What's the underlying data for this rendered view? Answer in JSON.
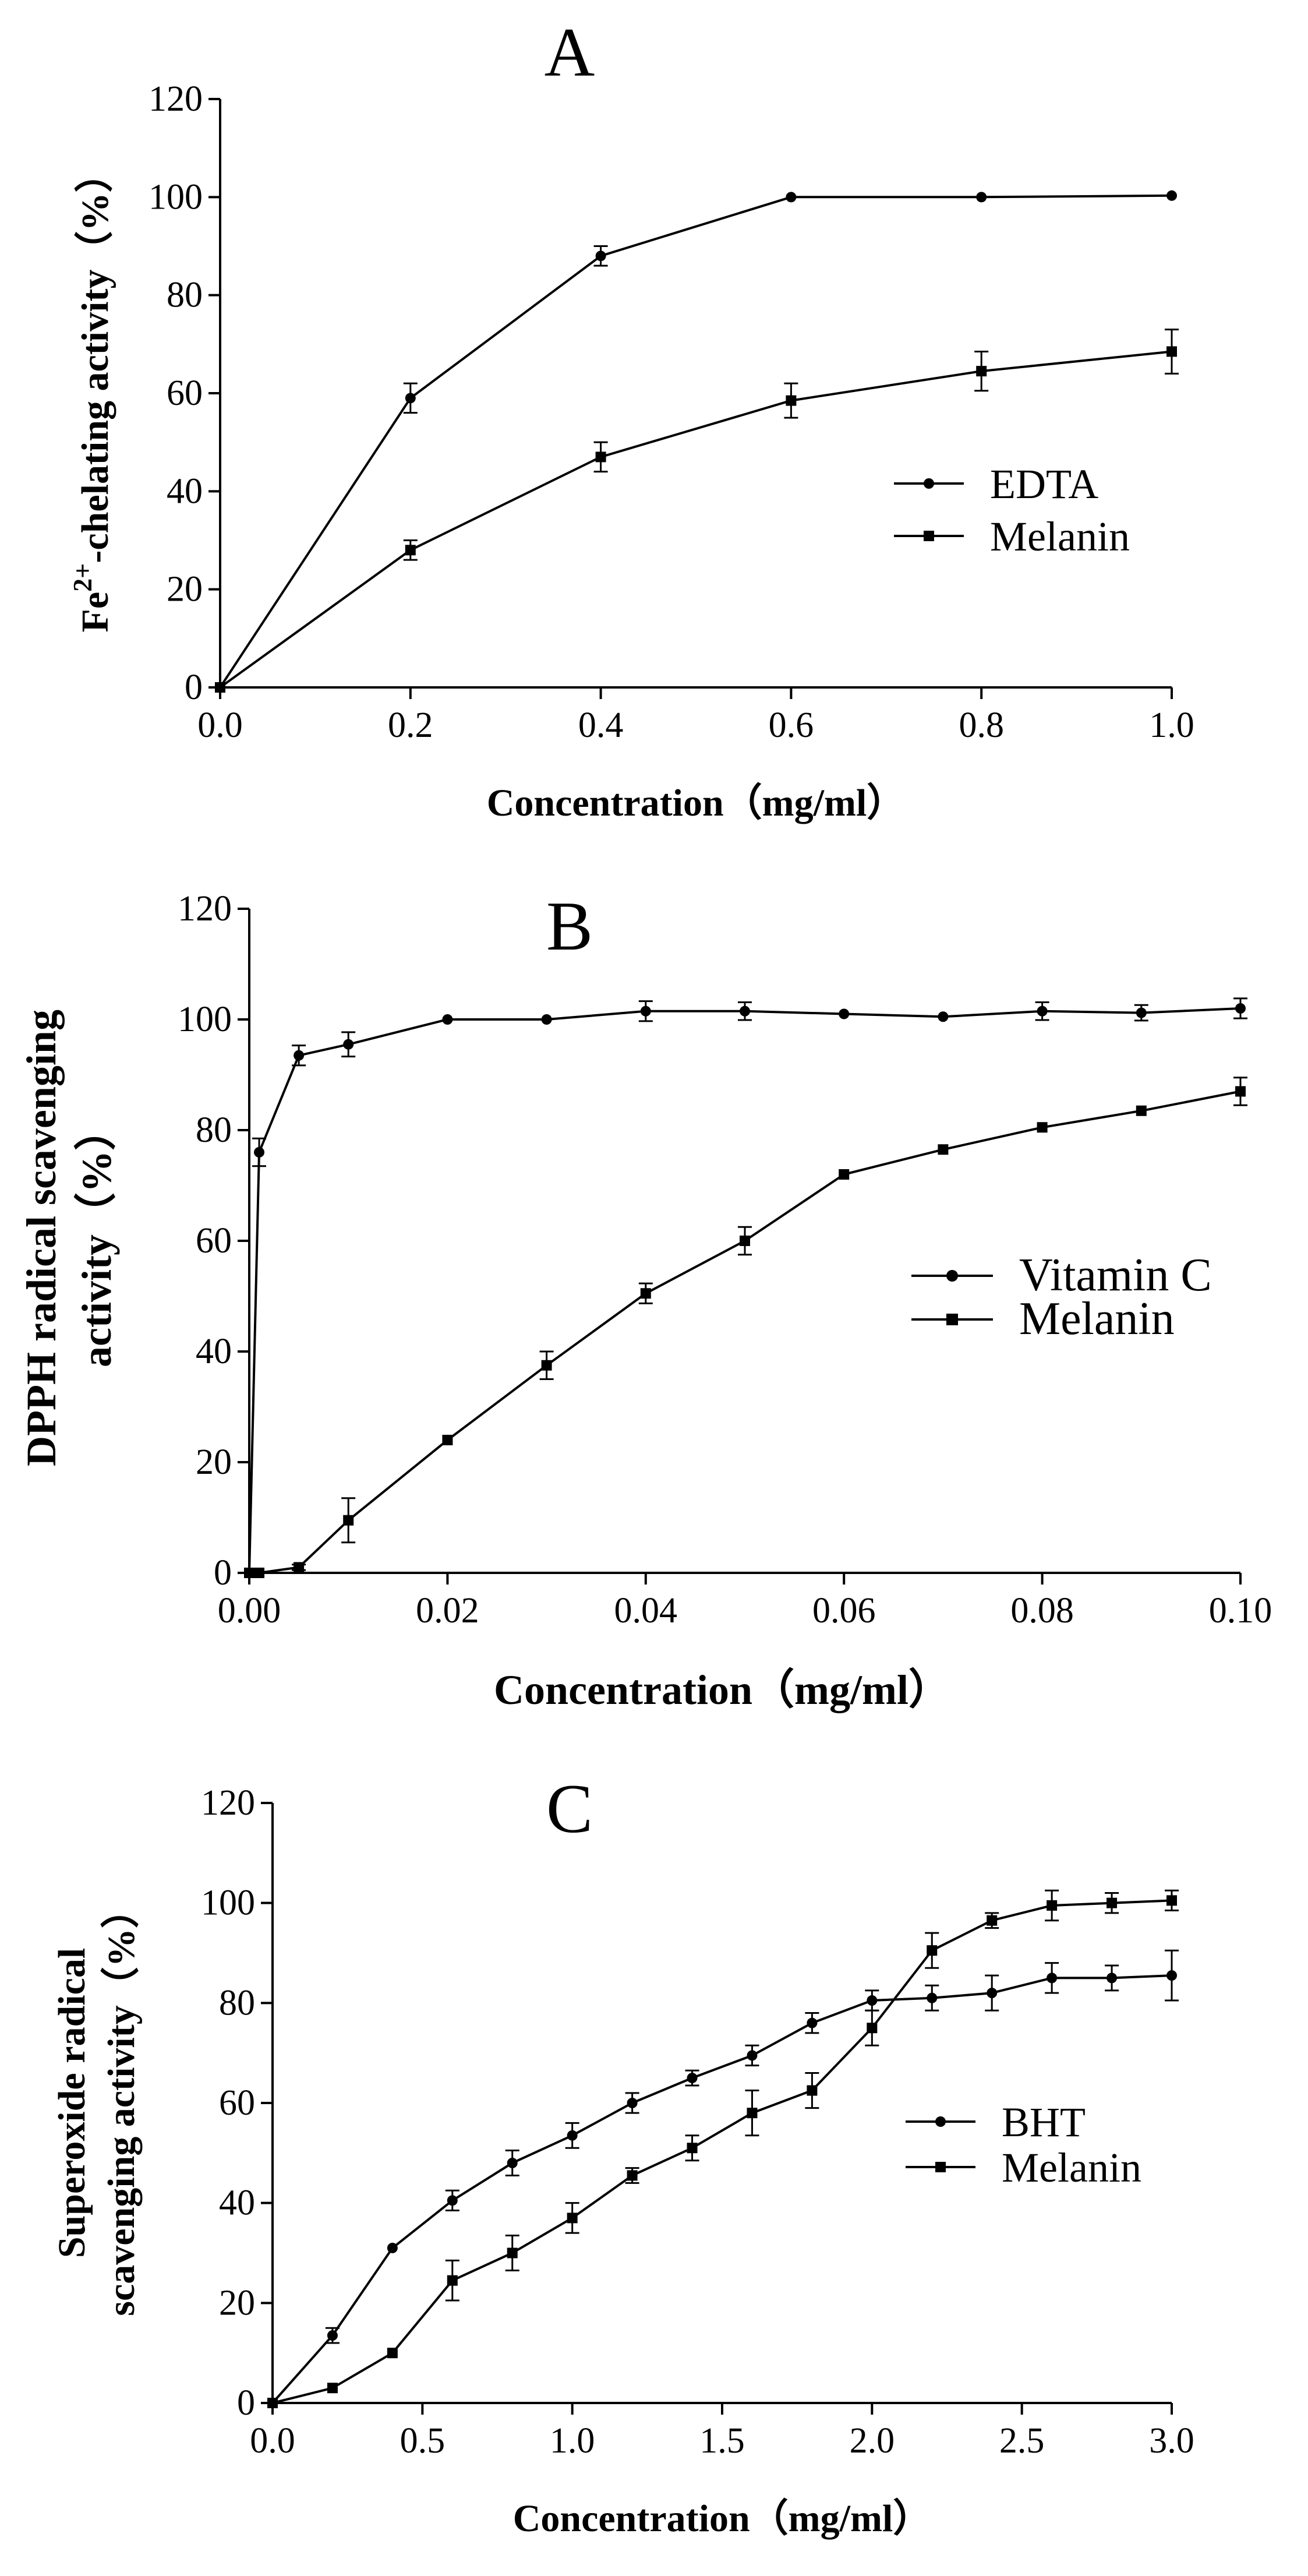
{
  "chart_data": [
    {
      "type": "line",
      "panel_label": "A",
      "xlabel": "Concentration（mg/ml）",
      "ylabel": "Fe2+-chelating activity（%）",
      "ylabel_parts": {
        "base": "Fe",
        "superscript": "2+",
        "rest": "-chelating activity（%）"
      },
      "xlim": [
        0,
        1.0
      ],
      "ylim": [
        0,
        120
      ],
      "xticks": [
        0,
        0.2,
        0.4,
        0.6,
        0.8,
        1.0
      ],
      "xtick_labels": [
        "0.0",
        "0.2",
        "0.4",
        "0.6",
        "0.8",
        "1.0"
      ],
      "yticks": [
        0,
        20,
        40,
        60,
        80,
        100,
        120
      ],
      "ytick_labels": [
        "0",
        "20",
        "40",
        "60",
        "80",
        "100",
        "120"
      ],
      "legend_position": "right-middle",
      "series": [
        {
          "name": "EDTA",
          "marker": "circle",
          "x": [
            0,
            0.2,
            0.4,
            0.6,
            0.8,
            1.0
          ],
          "y": [
            0,
            59,
            88,
            100,
            100,
            100.3
          ],
          "err": [
            0,
            3,
            2,
            0,
            0,
            0
          ]
        },
        {
          "name": "Melanin",
          "marker": "square",
          "x": [
            0,
            0.2,
            0.4,
            0.6,
            0.8,
            1.0
          ],
          "y": [
            0,
            28,
            47,
            58.5,
            64.5,
            68.5
          ],
          "err": [
            0,
            2,
            3,
            3.5,
            4,
            4.5
          ]
        }
      ]
    },
    {
      "type": "line",
      "panel_label": "B",
      "xlabel": "Concentration（mg/ml）",
      "ylabel": "DPPH radical scavenging activity（%）",
      "ylabel_lines": [
        "DPPH radical scavenging",
        "activity（%）"
      ],
      "xlim": [
        0,
        0.1
      ],
      "ylim": [
        0,
        120
      ],
      "xticks": [
        0,
        0.02,
        0.04,
        0.06,
        0.08,
        0.1
      ],
      "xtick_labels": [
        "0.00",
        "0.02",
        "0.04",
        "0.06",
        "0.08",
        "0.10"
      ],
      "yticks": [
        0,
        20,
        40,
        60,
        80,
        100,
        120
      ],
      "ytick_labels": [
        "0",
        "20",
        "40",
        "60",
        "80",
        "100",
        "120"
      ],
      "legend_position": "right-middle",
      "series": [
        {
          "name": "Vitamin C",
          "marker": "circle",
          "x": [
            0,
            0.001,
            0.005,
            0.01,
            0.02,
            0.03,
            0.04,
            0.05,
            0.06,
            0.07,
            0.08,
            0.09,
            0.1
          ],
          "y": [
            0,
            76,
            93.5,
            95.5,
            100,
            100,
            101.5,
            101.5,
            101,
            100.5,
            101.5,
            101.2,
            102
          ],
          "err": [
            0,
            2.5,
            1.8,
            2.2,
            0,
            0,
            1.8,
            1.6,
            0,
            0,
            1.6,
            1.4,
            1.8
          ]
        },
        {
          "name": "Melanin",
          "marker": "square",
          "x": [
            0,
            0.001,
            0.005,
            0.01,
            0.02,
            0.03,
            0.04,
            0.05,
            0.06,
            0.07,
            0.08,
            0.09,
            0.1
          ],
          "y": [
            0,
            0,
            1,
            9.5,
            24,
            37.5,
            50.5,
            60,
            72,
            76.5,
            80.5,
            83.5,
            87
          ],
          "err": [
            0,
            0,
            0.5,
            4,
            0,
            2.5,
            1.8,
            2.5,
            0,
            0,
            0,
            0,
            2.5
          ]
        }
      ]
    },
    {
      "type": "line",
      "panel_label": "C",
      "xlabel": "Concentration（mg/ml）",
      "ylabel": "Superoxide radical scavenging activity（%）",
      "ylabel_lines": [
        "Superoxide radical",
        "scavenging activity（%）"
      ],
      "xlim": [
        0,
        3.0
      ],
      "ylim": [
        0,
        120
      ],
      "xticks": [
        0,
        0.5,
        1.0,
        1.5,
        2.0,
        2.5,
        3.0
      ],
      "xtick_labels": [
        "0.0",
        "0.5",
        "1.0",
        "1.5",
        "2.0",
        "2.5",
        "3.0"
      ],
      "yticks": [
        0,
        20,
        40,
        60,
        80,
        100,
        120
      ],
      "ytick_labels": [
        "0",
        "20",
        "40",
        "60",
        "80",
        "100",
        "120"
      ],
      "legend_position": "right-middle",
      "series": [
        {
          "name": "BHT",
          "marker": "circle",
          "x": [
            0,
            0.2,
            0.4,
            0.6,
            0.8,
            1.0,
            1.2,
            1.4,
            1.6,
            1.8,
            2.0,
            2.2,
            2.4,
            2.6,
            2.8,
            3.0
          ],
          "y": [
            0,
            13.5,
            31,
            40.5,
            48,
            53.5,
            60,
            65,
            69.5,
            76,
            80.5,
            81,
            82,
            85,
            85,
            85.5
          ],
          "err": [
            0,
            1.5,
            0,
            2,
            2.5,
            2.5,
            2,
            1.5,
            2,
            2,
            2,
            2.5,
            3.5,
            3,
            2.5,
            5
          ]
        },
        {
          "name": "Melanin",
          "marker": "square",
          "x": [
            0,
            0.2,
            0.4,
            0.6,
            0.8,
            1.0,
            1.2,
            1.4,
            1.6,
            1.8,
            2.0,
            2.2,
            2.4,
            2.6,
            2.8,
            3.0
          ],
          "y": [
            0,
            3,
            10,
            24.5,
            30,
            37,
            45.5,
            51,
            58,
            62.5,
            75,
            90.5,
            96.5,
            99.5,
            100,
            100.5
          ],
          "err": [
            0,
            0,
            0,
            4,
            3.5,
            3,
            1.5,
            2.5,
            4.5,
            3.5,
            3.5,
            3.5,
            1.5,
            3,
            2,
            2
          ]
        }
      ]
    }
  ]
}
